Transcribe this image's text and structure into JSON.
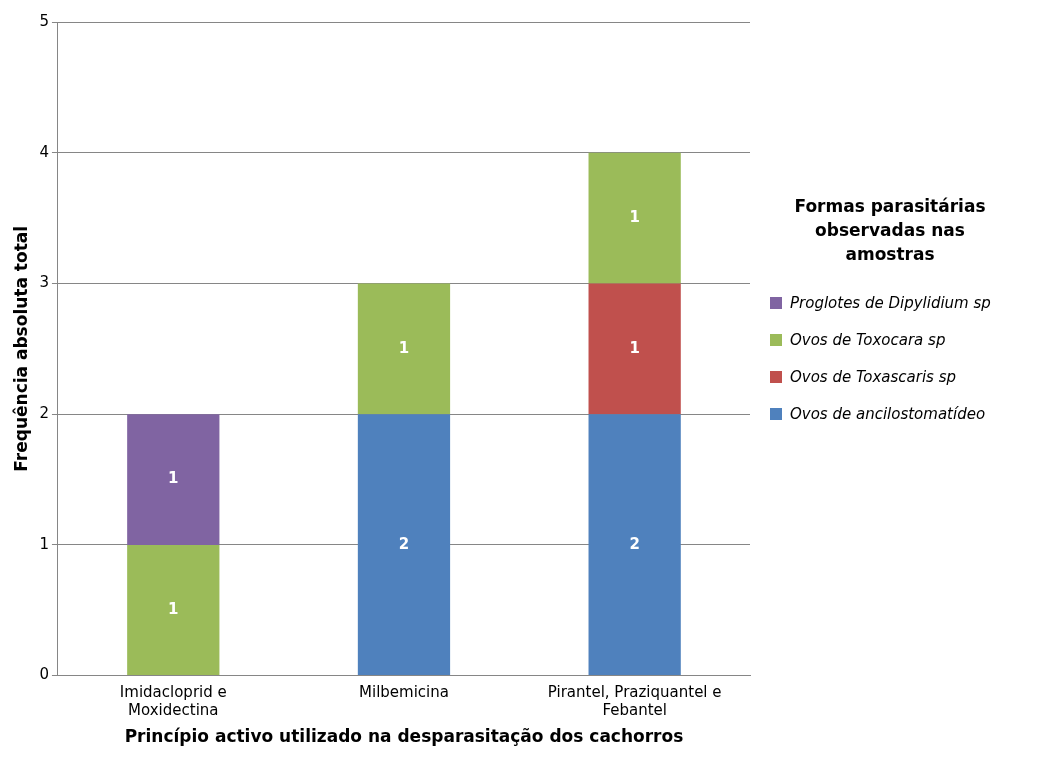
{
  "chart_data": {
    "type": "bar",
    "stacked": true,
    "xlabel": "Princípio activo utilizado na desparasitação dos cachorros",
    "ylabel": "Frequência absoluta total",
    "legend_title": "Formas parasitárias observadas nas amostras",
    "categories": [
      "Imidacloprid e Moxidectina",
      "Milbemicina",
      "Pirantel, Praziquantel e Febantel"
    ],
    "series": [
      {
        "name": "Ovos de ancilostomatídeo",
        "color": "#4f81bd",
        "values": [
          null,
          2,
          2
        ]
      },
      {
        "name": "Ovos de Toxascaris sp",
        "color": "#c0504d",
        "values": [
          null,
          null,
          1
        ]
      },
      {
        "name": "Ovos de Toxocara sp",
        "color": "#9bbb59",
        "values": [
          1,
          1,
          1
        ]
      },
      {
        "name": "Proglotes de Dipylidium sp",
        "color": "#8064a2",
        "values": [
          1,
          null,
          null
        ]
      }
    ],
    "ylim": [
      0,
      5
    ],
    "yticks": [
      0,
      1,
      2,
      3,
      4,
      5
    ],
    "grid": "y",
    "legend": "right",
    "data_labels": true
  }
}
